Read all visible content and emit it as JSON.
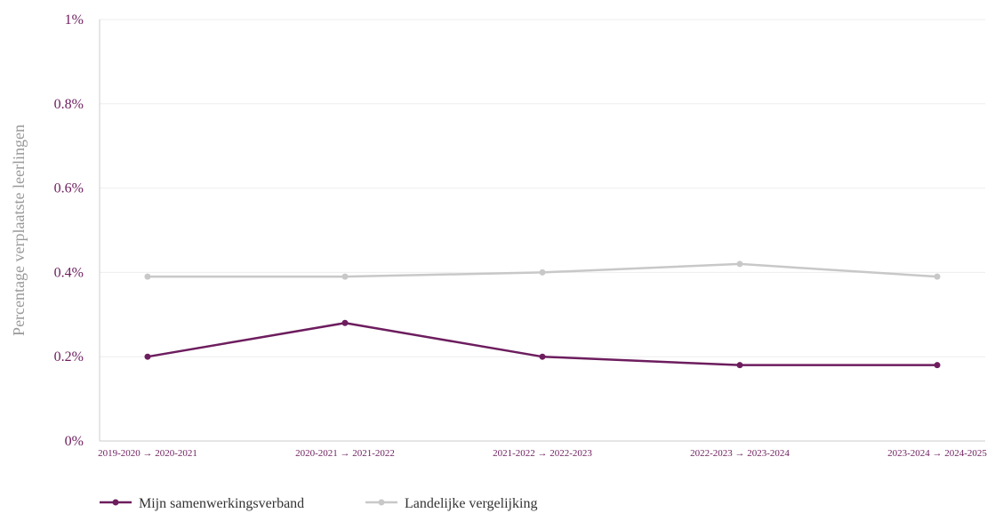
{
  "chart_data": {
    "type": "line",
    "categories": [
      "2019-2020 → 2020-2021",
      "2020-2021 → 2021-2022",
      "2021-2022 → 2022-2023",
      "2022-2023 → 2023-2024",
      "2023-2024 → 2024-2025"
    ],
    "series": [
      {
        "name": "Mijn samenwerkingsverband",
        "values": [
          0.2,
          0.28,
          0.2,
          0.18,
          0.18
        ],
        "color": "#6d1d5e"
      },
      {
        "name": "Landelijke vergelijking",
        "values": [
          0.39,
          0.39,
          0.4,
          0.42,
          0.39
        ],
        "color": "#c8c8c8"
      }
    ],
    "ylabel": "Percentage verplaatste leerlingen",
    "ylim": [
      0,
      1
    ],
    "yticks": [
      "0%",
      "0.2%",
      "0.4%",
      "0.6%",
      "0.8%",
      "1%"
    ],
    "grid": true,
    "legend_position": "bottom-left",
    "colors": {
      "tick_text": "#6d1d5e",
      "axis_label": "#999999",
      "grid": "#eeeeee",
      "axis": "#cccccc"
    }
  }
}
